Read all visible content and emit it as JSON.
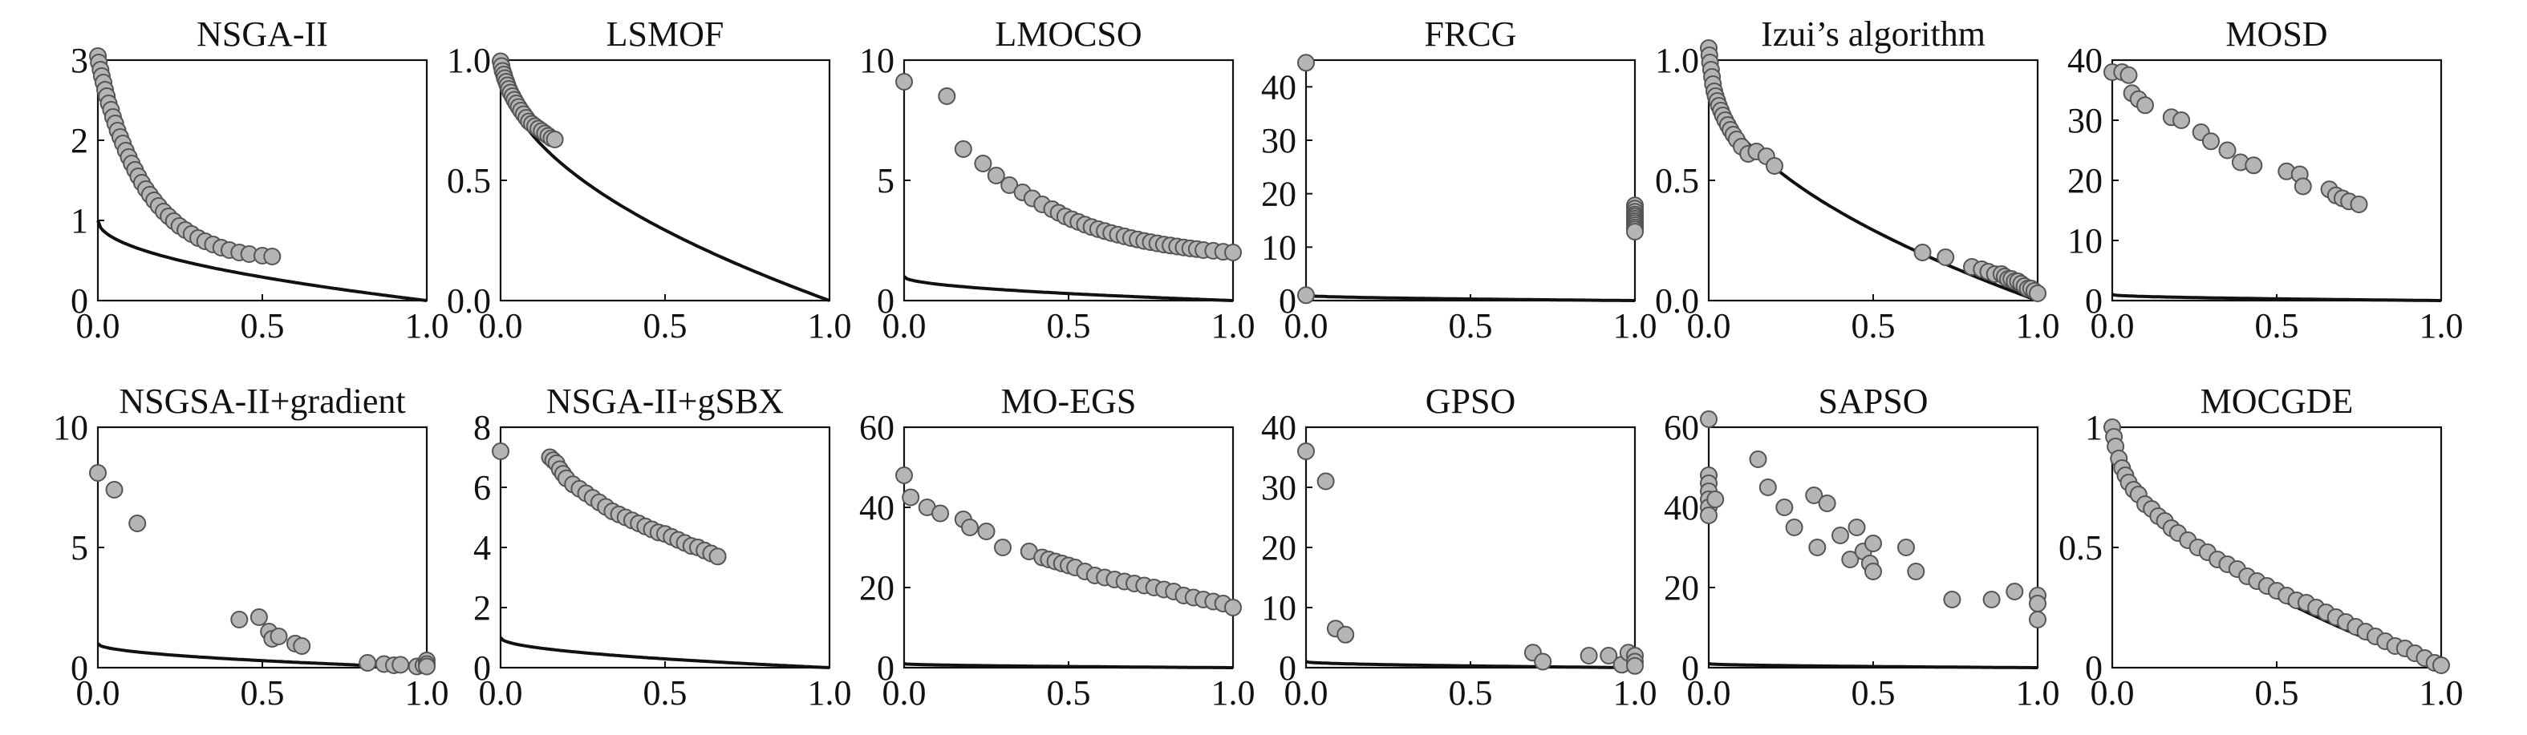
{
  "style": {
    "marker_fill": "#b5b5b5",
    "marker_edge": "#555555",
    "line_color": "#111111"
  },
  "chart_data": [
    {
      "type": "scatter",
      "title": "NSGA-II",
      "xlim": [
        0,
        1
      ],
      "ylim": [
        0,
        3
      ],
      "xticks": [
        0,
        0.5,
        1
      ],
      "xtick_labels": [
        "0.0",
        "0.5",
        "1.0"
      ],
      "yticks": [
        0,
        1,
        2,
        3
      ],
      "ytick_labels": [
        "0",
        "1",
        "2",
        "3"
      ],
      "front": "sqrt",
      "x": [
        0.0,
        0.003,
        0.008,
        0.012,
        0.017,
        0.022,
        0.027,
        0.033,
        0.04,
        0.046,
        0.053,
        0.06,
        0.068,
        0.076,
        0.085,
        0.094,
        0.103,
        0.113,
        0.123,
        0.134,
        0.146,
        0.158,
        0.171,
        0.185,
        0.2,
        0.215,
        0.231,
        0.248,
        0.266,
        0.285,
        0.305,
        0.326,
        0.35,
        0.375,
        0.4,
        0.43,
        0.46,
        0.5,
        0.53
      ],
      "y": [
        3.05,
        2.97,
        2.88,
        2.8,
        2.72,
        2.63,
        2.55,
        2.46,
        2.38,
        2.29,
        2.21,
        2.12,
        2.04,
        1.96,
        1.87,
        1.79,
        1.71,
        1.63,
        1.55,
        1.47,
        1.39,
        1.32,
        1.25,
        1.18,
        1.11,
        1.05,
        0.99,
        0.93,
        0.88,
        0.83,
        0.78,
        0.74,
        0.7,
        0.66,
        0.63,
        0.6,
        0.58,
        0.56,
        0.55
      ]
    },
    {
      "type": "scatter",
      "title": "LSMOF",
      "xlim": [
        0,
        1
      ],
      "ylim": [
        0,
        1
      ],
      "xticks": [
        0,
        0.5,
        1
      ],
      "xtick_labels": [
        "0.0",
        "0.5",
        "1.0"
      ],
      "yticks": [
        0,
        0.5,
        1
      ],
      "ytick_labels": [
        "0.0",
        "0.5",
        "1.0"
      ],
      "front": "sqrt",
      "x": [
        0.0,
        0.003,
        0.006,
        0.01,
        0.013,
        0.017,
        0.021,
        0.025,
        0.03,
        0.036,
        0.042,
        0.048,
        0.055,
        0.062,
        0.07,
        0.078,
        0.086,
        0.095,
        0.105,
        0.115,
        0.125,
        0.135,
        0.145,
        0.155,
        0.165
      ],
      "y": [
        0.995,
        0.975,
        0.955,
        0.94,
        0.925,
        0.91,
        0.895,
        0.88,
        0.865,
        0.85,
        0.835,
        0.82,
        0.805,
        0.79,
        0.775,
        0.76,
        0.745,
        0.735,
        0.725,
        0.715,
        0.705,
        0.695,
        0.685,
        0.675,
        0.67
      ]
    },
    {
      "type": "scatter",
      "title": "LMOCSO",
      "xlim": [
        0,
        1
      ],
      "ylim": [
        0,
        10
      ],
      "xticks": [
        0,
        0.5,
        1
      ],
      "xtick_labels": [
        "0.0",
        "0.5",
        "1.0"
      ],
      "yticks": [
        0,
        5,
        10
      ],
      "ytick_labels": [
        "0",
        "5",
        "10"
      ],
      "front": "sqrt",
      "x": [
        0.0,
        0.13,
        0.18,
        0.24,
        0.28,
        0.32,
        0.36,
        0.39,
        0.42,
        0.45,
        0.47,
        0.49,
        0.51,
        0.53,
        0.55,
        0.57,
        0.59,
        0.61,
        0.63,
        0.65,
        0.67,
        0.69,
        0.71,
        0.73,
        0.75,
        0.77,
        0.79,
        0.81,
        0.83,
        0.85,
        0.87,
        0.89,
        0.91,
        0.94,
        0.97,
        1.0
      ],
      "y": [
        9.1,
        8.5,
        6.3,
        5.7,
        5.2,
        4.8,
        4.5,
        4.25,
        4.0,
        3.8,
        3.65,
        3.5,
        3.38,
        3.27,
        3.16,
        3.06,
        2.97,
        2.89,
        2.81,
        2.74,
        2.67,
        2.6,
        2.54,
        2.48,
        2.43,
        2.38,
        2.33,
        2.29,
        2.25,
        2.21,
        2.17,
        2.14,
        2.1,
        2.07,
        2.03,
        2.0
      ]
    },
    {
      "type": "scatter",
      "title": "FRCG",
      "xlim": [
        0,
        1
      ],
      "ylim": [
        0,
        45
      ],
      "xticks": [
        0,
        0.5,
        1
      ],
      "xtick_labels": [
        "0.0",
        "0.5",
        "1.0"
      ],
      "yticks": [
        0,
        10,
        20,
        30,
        40
      ],
      "ytick_labels": [
        "0",
        "10",
        "20",
        "30",
        "40"
      ],
      "front": "sqrt",
      "x": [
        0.0,
        0.0,
        1.0,
        1.0,
        1.0,
        1.0,
        1.0,
        1.0,
        1.0,
        1.0,
        1.0,
        1.0,
        1.0,
        1.0
      ],
      "y": [
        44.5,
        1.0,
        17.8,
        17.2,
        16.6,
        16.1,
        15.7,
        15.3,
        14.9,
        14.5,
        14.1,
        13.7,
        13.3,
        12.9
      ]
    },
    {
      "type": "scatter",
      "title": "Izui’s algorithm",
      "xlim": [
        0,
        1
      ],
      "ylim": [
        0,
        1
      ],
      "xticks": [
        0,
        0.5,
        1
      ],
      "xtick_labels": [
        "0.0",
        "0.5",
        "1.0"
      ],
      "yticks": [
        0,
        0.5,
        1
      ],
      "ytick_labels": [
        "0.0",
        "0.5",
        "1.0"
      ],
      "front": "sqrt",
      "x": [
        0.0,
        0.002,
        0.004,
        0.007,
        0.01,
        0.013,
        0.017,
        0.021,
        0.026,
        0.031,
        0.037,
        0.043,
        0.05,
        0.058,
        0.066,
        0.075,
        0.085,
        0.1,
        0.12,
        0.145,
        0.175,
        0.2,
        0.65,
        0.72,
        0.8,
        0.83,
        0.85,
        0.87,
        0.89,
        0.9,
        0.91,
        0.92,
        0.93,
        0.94,
        0.95,
        0.96,
        0.97,
        0.98,
        0.99,
        1.0
      ],
      "y": [
        1.05,
        1.02,
        0.99,
        0.96,
        0.93,
        0.9,
        0.87,
        0.85,
        0.83,
        0.81,
        0.79,
        0.77,
        0.75,
        0.73,
        0.71,
        0.69,
        0.67,
        0.64,
        0.61,
        0.62,
        0.6,
        0.56,
        0.2,
        0.18,
        0.14,
        0.13,
        0.12,
        0.11,
        0.11,
        0.1,
        0.09,
        0.09,
        0.08,
        0.08,
        0.07,
        0.06,
        0.05,
        0.05,
        0.04,
        0.03
      ]
    },
    {
      "type": "scatter",
      "title": "MOSD",
      "xlim": [
        0,
        1
      ],
      "ylim": [
        0,
        40
      ],
      "xticks": [
        0,
        0.5,
        1
      ],
      "xtick_labels": [
        "0.0",
        "0.5",
        "1.0"
      ],
      "yticks": [
        0,
        10,
        20,
        30,
        40
      ],
      "ytick_labels": [
        "0",
        "10",
        "20",
        "30",
        "40"
      ],
      "front": "sqrt",
      "x": [
        0.0,
        0.03,
        0.05,
        0.06,
        0.08,
        0.1,
        0.18,
        0.21,
        0.27,
        0.3,
        0.35,
        0.39,
        0.43,
        0.53,
        0.57,
        0.58,
        0.66,
        0.68,
        0.7,
        0.72,
        0.75
      ],
      "y": [
        38.0,
        38.0,
        37.5,
        34.5,
        33.5,
        32.5,
        30.5,
        30.0,
        28.0,
        26.5,
        25.0,
        23.0,
        22.5,
        21.5,
        21.0,
        19.0,
        18.5,
        17.5,
        17.0,
        16.5,
        16.0
      ]
    },
    {
      "type": "scatter",
      "title": "NSGSA-II+gradient",
      "xlim": [
        0,
        1
      ],
      "ylim": [
        0,
        10
      ],
      "xticks": [
        0,
        0.5,
        1
      ],
      "xtick_labels": [
        "0.0",
        "0.5",
        "1.0"
      ],
      "yticks": [
        0,
        5,
        10
      ],
      "ytick_labels": [
        "0",
        "5",
        "10"
      ],
      "front": "sqrt",
      "x": [
        0.0,
        0.05,
        0.12,
        0.43,
        0.49,
        0.52,
        0.53,
        0.55,
        0.6,
        0.62,
        0.82,
        0.87,
        0.9,
        0.92,
        0.97,
        0.99,
        1.0,
        1.0,
        1.0
      ],
      "y": [
        8.1,
        7.4,
        6.0,
        2.0,
        2.1,
        1.5,
        1.2,
        1.3,
        1.0,
        0.9,
        0.2,
        0.15,
        0.1,
        0.12,
        0.05,
        0.1,
        0.3,
        0.15,
        0.05
      ]
    },
    {
      "type": "scatter",
      "title": "NSGA-II+gSBX",
      "xlim": [
        0,
        1
      ],
      "ylim": [
        0,
        8
      ],
      "xticks": [
        0,
        0.5,
        1
      ],
      "xtick_labels": [
        "0.0",
        "0.5",
        "1.0"
      ],
      "yticks": [
        0,
        2,
        4,
        6,
        8
      ],
      "ytick_labels": [
        "0",
        "2",
        "4",
        "6",
        "8"
      ],
      "front": "sqrt",
      "x": [
        0.0,
        0.15,
        0.16,
        0.17,
        0.18,
        0.19,
        0.2,
        0.22,
        0.24,
        0.26,
        0.28,
        0.3,
        0.32,
        0.34,
        0.36,
        0.38,
        0.4,
        0.42,
        0.44,
        0.46,
        0.48,
        0.5,
        0.52,
        0.54,
        0.56,
        0.58,
        0.6,
        0.62,
        0.64,
        0.66
      ],
      "y": [
        7.2,
        7.0,
        6.9,
        6.8,
        6.6,
        6.45,
        6.3,
        6.1,
        5.95,
        5.8,
        5.65,
        5.5,
        5.35,
        5.2,
        5.1,
        5.0,
        4.9,
        4.8,
        4.7,
        4.6,
        4.5,
        4.45,
        4.35,
        4.25,
        4.15,
        4.05,
        4.0,
        3.9,
        3.8,
        3.7
      ]
    },
    {
      "type": "scatter",
      "title": "MO-EGS",
      "xlim": [
        0,
        1
      ],
      "ylim": [
        0,
        60
      ],
      "xticks": [
        0,
        0.5,
        1
      ],
      "xtick_labels": [
        "0.0",
        "0.5",
        "1.0"
      ],
      "yticks": [
        0,
        20,
        40,
        60
      ],
      "ytick_labels": [
        "0",
        "20",
        "40",
        "60"
      ],
      "front": "sqrt",
      "x": [
        0.0,
        0.02,
        0.07,
        0.11,
        0.18,
        0.2,
        0.25,
        0.3,
        0.38,
        0.42,
        0.44,
        0.46,
        0.48,
        0.5,
        0.52,
        0.55,
        0.58,
        0.61,
        0.64,
        0.67,
        0.7,
        0.73,
        0.76,
        0.79,
        0.82,
        0.85,
        0.88,
        0.91,
        0.94,
        0.97,
        1.0
      ],
      "y": [
        48.0,
        42.5,
        40.0,
        38.5,
        37.0,
        35.0,
        34.0,
        30.0,
        29.0,
        27.5,
        27.0,
        26.5,
        26.0,
        25.5,
        25.0,
        24.0,
        23.0,
        22.5,
        22.0,
        21.5,
        21.0,
        20.5,
        20.0,
        19.5,
        19.0,
        18.0,
        17.5,
        17.0,
        16.5,
        16.0,
        15.0
      ]
    },
    {
      "type": "scatter",
      "title": "GPSO",
      "xlim": [
        0,
        1
      ],
      "ylim": [
        0,
        40
      ],
      "xticks": [
        0,
        0.5,
        1
      ],
      "xtick_labels": [
        "0.0",
        "0.5",
        "1.0"
      ],
      "yticks": [
        0,
        10,
        20,
        30,
        40
      ],
      "ytick_labels": [
        "0",
        "10",
        "20",
        "30",
        "40"
      ],
      "front": "sqrt",
      "x": [
        0.0,
        0.06,
        0.09,
        0.12,
        0.69,
        0.72,
        0.86,
        0.92,
        0.96,
        0.98,
        1.0,
        1.0,
        1.0
      ],
      "y": [
        36.0,
        31.0,
        6.5,
        5.5,
        2.5,
        1.0,
        2.0,
        2.0,
        0.5,
        2.5,
        2.0,
        1.0,
        0.3
      ]
    },
    {
      "type": "scatter",
      "title": "SAPSO",
      "xlim": [
        0,
        1
      ],
      "ylim": [
        0,
        60
      ],
      "xticks": [
        0,
        0.5,
        1
      ],
      "xtick_labels": [
        "0.0",
        "0.5",
        "1.0"
      ],
      "yticks": [
        0,
        20,
        40,
        60
      ],
      "ytick_labels": [
        "0",
        "20",
        "40",
        "60"
      ],
      "front": "sqrt",
      "x": [
        0.0,
        0.0,
        0.0,
        0.0,
        0.0,
        0.0,
        0.0,
        0.02,
        0.15,
        0.18,
        0.23,
        0.26,
        0.32,
        0.33,
        0.36,
        0.4,
        0.43,
        0.45,
        0.47,
        0.49,
        0.5,
        0.5,
        0.6,
        0.63,
        0.74,
        0.86,
        0.93,
        1.0,
        1.0,
        1.0
      ],
      "y": [
        62.0,
        48.0,
        46.0,
        44.0,
        42.0,
        40.0,
        38.0,
        42.0,
        52.0,
        45.0,
        40.0,
        35.0,
        43.0,
        30.0,
        41.0,
        33.0,
        27.0,
        35.0,
        29.0,
        26.0,
        31.0,
        24.0,
        30.0,
        24.0,
        17.0,
        17.0,
        19.0,
        18.0,
        16.0,
        12.0
      ]
    },
    {
      "type": "scatter",
      "title": "MOCGDE",
      "xlim": [
        0,
        1
      ],
      "ylim": [
        0,
        1
      ],
      "xticks": [
        0,
        0.5,
        1
      ],
      "xtick_labels": [
        "0.0",
        "0.5",
        "1.0"
      ],
      "yticks": [
        0,
        0.5,
        1
      ],
      "ytick_labels": [
        "0",
        "0.5",
        "1"
      ],
      "front": "sqrt",
      "x": [
        0.0,
        0.005,
        0.01,
        0.02,
        0.03,
        0.04,
        0.05,
        0.065,
        0.08,
        0.1,
        0.12,
        0.14,
        0.16,
        0.18,
        0.2,
        0.23,
        0.26,
        0.29,
        0.32,
        0.35,
        0.38,
        0.41,
        0.44,
        0.47,
        0.5,
        0.53,
        0.56,
        0.59,
        0.62,
        0.65,
        0.68,
        0.71,
        0.74,
        0.77,
        0.8,
        0.83,
        0.86,
        0.89,
        0.92,
        0.95,
        0.98,
        1.0
      ],
      "y": [
        1.0,
        0.96,
        0.92,
        0.87,
        0.83,
        0.8,
        0.77,
        0.74,
        0.72,
        0.68,
        0.66,
        0.63,
        0.61,
        0.58,
        0.56,
        0.53,
        0.5,
        0.48,
        0.45,
        0.43,
        0.41,
        0.38,
        0.36,
        0.34,
        0.32,
        0.3,
        0.28,
        0.27,
        0.25,
        0.23,
        0.21,
        0.19,
        0.17,
        0.15,
        0.13,
        0.11,
        0.09,
        0.08,
        0.06,
        0.04,
        0.02,
        0.01
      ]
    }
  ]
}
